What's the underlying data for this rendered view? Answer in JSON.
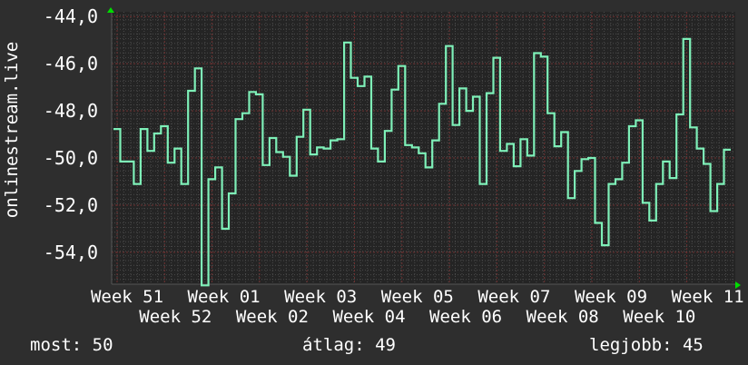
{
  "chart_data": {
    "type": "line",
    "step": true,
    "ylabel": "onlinestream.live",
    "ylim": [
      -55.35,
      -43.8
    ],
    "yticks": [
      "-44,0",
      "-46,0",
      "-48,0",
      "-50,0",
      "-52,0",
      "-54,0"
    ],
    "ytick_values": [
      -44,
      -46,
      -48,
      -50,
      -52,
      -54
    ],
    "xtick_labels": [
      "Week 51",
      "Week 52",
      "Week 01",
      "Week 02",
      "Week 03",
      "Week 04",
      "Week 05",
      "Week 06",
      "Week 07",
      "Week 08",
      "Week 09",
      "Week 10",
      "Week 11"
    ],
    "grid": true,
    "series": [
      {
        "color": "#7ef0b8",
        "values": [
          -48.77,
          -50.15,
          -50.15,
          -51.1,
          -48.77,
          -49.7,
          -48.96,
          -48.65,
          -50.2,
          -49.6,
          -51.1,
          -47.15,
          -46.2,
          -55.4,
          -50.9,
          -50.4,
          -53.0,
          -51.5,
          -48.35,
          -48.1,
          -47.2,
          -47.3,
          -50.3,
          -49.15,
          -49.75,
          -49.95,
          -50.75,
          -49.1,
          -47.95,
          -49.85,
          -49.55,
          -49.6,
          -49.25,
          -49.2,
          -45.1,
          -46.6,
          -46.95,
          -46.55,
          -49.6,
          -50.15,
          -48.85,
          -47.1,
          -46.1,
          -49.45,
          -49.55,
          -49.8,
          -50.4,
          -49.25,
          -47.7,
          -45.25,
          -48.6,
          -47.05,
          -48.0,
          -47.4,
          -51.1,
          -47.25,
          -45.75,
          -49.7,
          -49.4,
          -50.35,
          -49.2,
          -49.9,
          -45.55,
          -45.7,
          -48.1,
          -49.5,
          -48.9,
          -51.7,
          -50.55,
          -50.05,
          -50.0,
          -52.75,
          -53.7,
          -51.1,
          -50.9,
          -50.2,
          -48.65,
          -48.4,
          -51.9,
          -52.65,
          -51.1,
          -50.15,
          -50.85,
          -48.15,
          -44.95,
          -48.7,
          -49.6,
          -50.25,
          -52.25,
          -51.1,
          -49.65
        ]
      }
    ]
  },
  "legend": {
    "current": "most: 50",
    "average": "átlag: 49",
    "max": "legjobb: 45"
  },
  "colors": {
    "background": "#2e2e2e",
    "plot": "#242424",
    "grid_minor": "#4a4a4a",
    "grid_major": "#6e3030",
    "axis_arrow": "#00dd00"
  }
}
